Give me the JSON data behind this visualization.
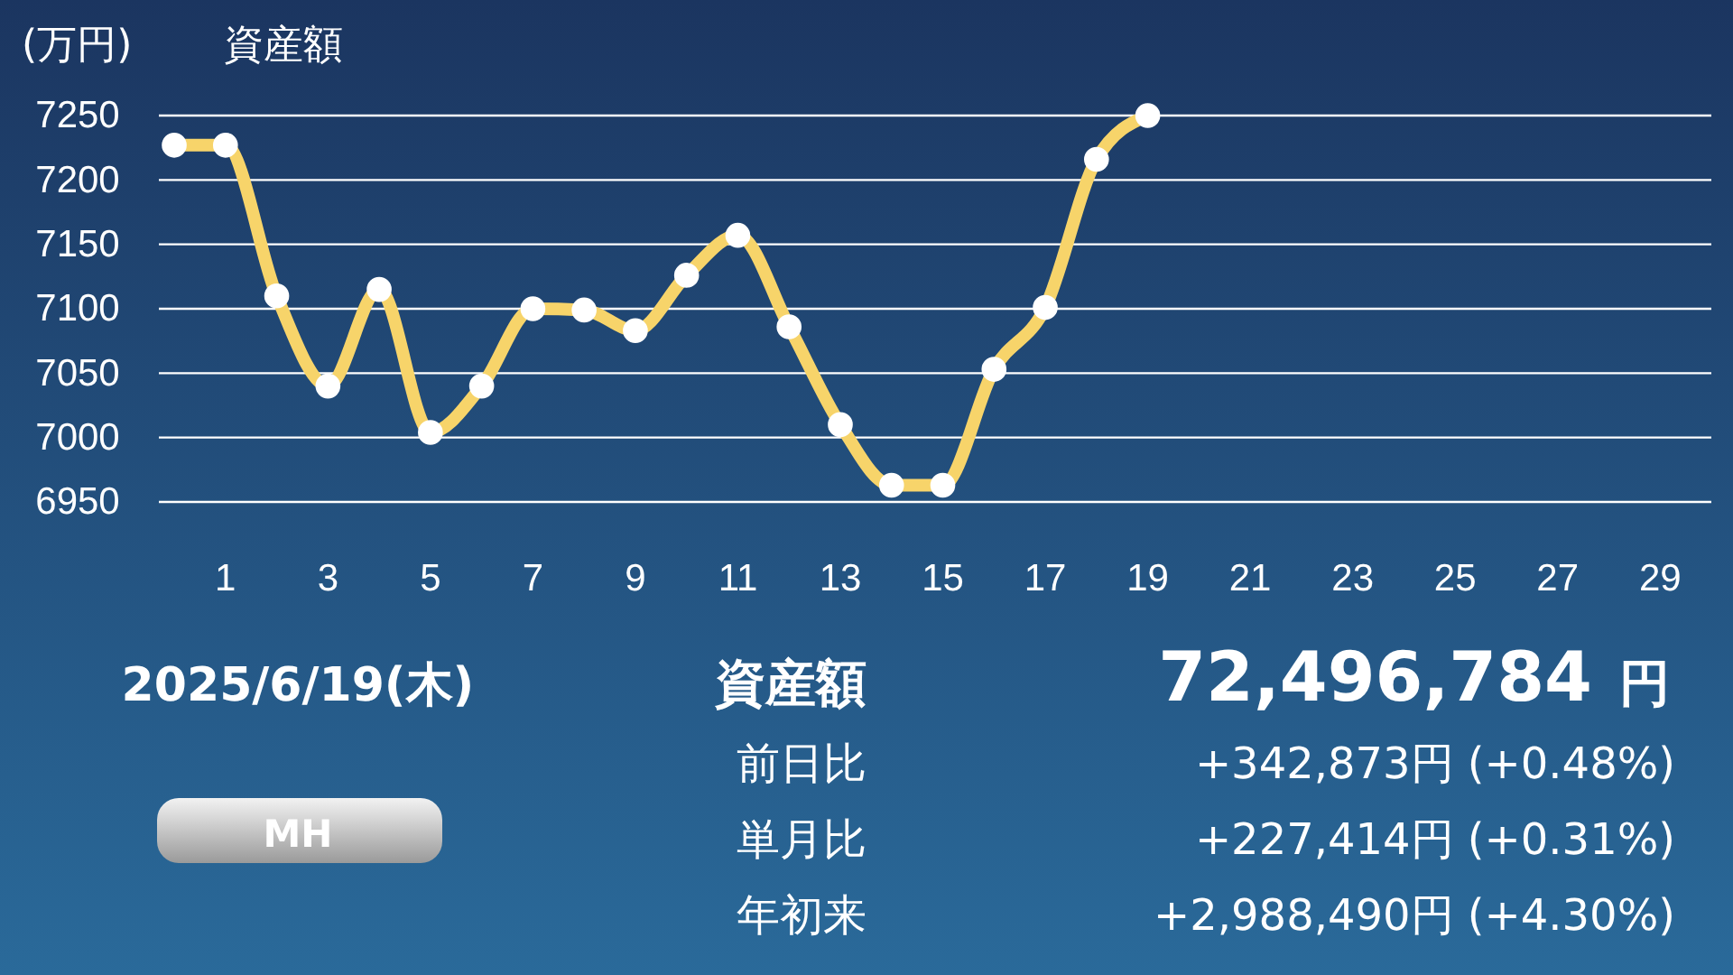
{
  "chart_data": {
    "type": "line",
    "title": "資産額",
    "ylabel": "(万円)",
    "x": [
      0,
      1,
      2,
      3,
      4,
      5,
      6,
      7,
      8,
      9,
      10,
      11,
      12,
      13,
      14,
      15,
      16,
      17,
      18,
      19
    ],
    "series": [
      {
        "color": "#f7d46a",
        "values": [
          7227,
          7227,
          7110,
          7040,
          7115,
          7004,
          7040,
          7100,
          7099,
          7083,
          7126,
          7157,
          7086,
          7010,
          6963,
          6963,
          7053,
          7101,
          7216,
          7250
        ]
      }
    ],
    "xlim": [
      -0.3,
      30
    ],
    "xticks": [
      1,
      3,
      5,
      7,
      9,
      11,
      13,
      15,
      17,
      19,
      21,
      23,
      25,
      27,
      29
    ],
    "ylim": [
      6950,
      7250
    ],
    "yticks": [
      6950,
      7000,
      7050,
      7100,
      7150,
      7200,
      7250
    ],
    "grid": "y",
    "marker": "circle",
    "line_style": "solid",
    "annotations": [
      "2025/6/19(木)",
      "資産額",
      "72,496,784",
      "円",
      "前日比",
      "+342,873円 (+0.48%)",
      "単月比",
      "+227,414円 (+0.31%)",
      "年初来",
      "+2,988,490円 (+4.30%)",
      "MH"
    ]
  }
}
